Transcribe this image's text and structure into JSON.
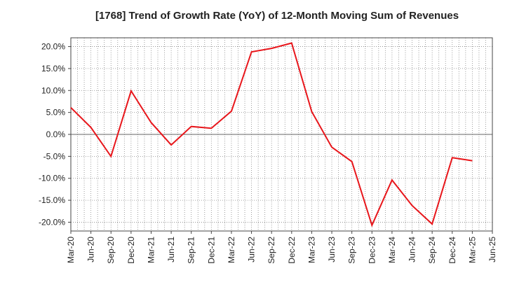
{
  "chart_data": {
    "type": "line",
    "title": "[1768]  Trend of Growth Rate (YoY) of 12-Month Moving Sum of Revenues",
    "x": [
      "Mar-20",
      "Jun-20",
      "Sep-20",
      "Dec-20",
      "Mar-21",
      "Jun-21",
      "Sep-21",
      "Dec-21",
      "Mar-22",
      "Jun-22",
      "Sep-22",
      "Dec-22",
      "Mar-23",
      "Jun-23",
      "Sep-23",
      "Dec-23",
      "Mar-24",
      "Jun-24",
      "Sep-24",
      "Dec-24",
      "Mar-25",
      "Jun-25"
    ],
    "series": [
      {
        "color": "#e8161b",
        "values": [
          6.1,
          1.6,
          -5.0,
          9.9,
          2.7,
          -2.4,
          1.8,
          1.4,
          5.3,
          18.8,
          19.6,
          20.8,
          5.2,
          -2.9,
          -6.2,
          -20.7,
          -10.4,
          -16.2,
          -20.4,
          -5.3,
          -6.0,
          null
        ]
      }
    ],
    "yticks": [
      "20.0%",
      "15.0%",
      "10.0%",
      "5.0%",
      "0.0%",
      "-5.0%",
      "-10.0%",
      "-15.0%",
      "-20.0%"
    ],
    "ylim": [
      -22,
      22
    ],
    "grid": true,
    "xlabel": "",
    "ylabel": ""
  }
}
